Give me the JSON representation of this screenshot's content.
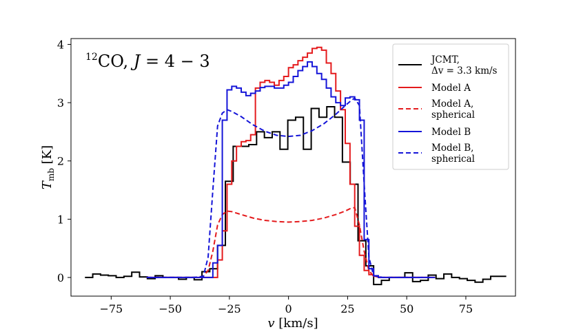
{
  "chart_data": {
    "type": "line",
    "title": "12CO, J = 4 − 3",
    "title_parts": {
      "sup": "12",
      "molecule": "CO, ",
      "j": "J",
      "rest": " = 4 − 3"
    },
    "xlabel": "v [km/s]",
    "xlabel_parts": {
      "var": "v",
      "unit": " [km/s]"
    },
    "ylabel": "T_mb [K]",
    "ylabel_parts": {
      "var": "T",
      "sub": "mb",
      "unit": " [K]"
    },
    "xlim": [
      -92,
      96
    ],
    "ylim": [
      -0.32,
      4.1
    ],
    "xticks": [
      -75,
      -50,
      -25,
      0,
      25,
      50,
      75
    ],
    "xtick_labels": [
      "−75",
      "−50",
      "−25",
      "0",
      "25",
      "50",
      "75"
    ],
    "yticks": [
      0,
      1,
      2,
      3,
      4
    ],
    "ytick_labels": [
      "0",
      "1",
      "2",
      "3",
      "4"
    ],
    "legend_position": "top-right",
    "series": [
      {
        "name": "JCMT, Δv = 3.3 km/s",
        "legend_lines": [
          "JCMT,",
          "Δv = 3.3 km/s"
        ],
        "color": "#000000",
        "style": "solid",
        "step": true,
        "x": [
          -86.1,
          -82.8,
          -79.5,
          -76.2,
          -72.9,
          -69.6,
          -66.3,
          -63.0,
          -59.7,
          -56.4,
          -53.1,
          -49.8,
          -46.5,
          -43.2,
          -39.9,
          -36.6,
          -33.3,
          -30.0,
          -26.7,
          -23.4,
          -20.1,
          -16.8,
          -13.5,
          -10.2,
          -6.9,
          -3.6,
          -0.3,
          3.0,
          6.3,
          9.6,
          12.9,
          16.2,
          19.5,
          22.8,
          26.1,
          29.4,
          32.7,
          36.0,
          39.3,
          42.6,
          45.9,
          49.2,
          52.5,
          55.8,
          59.1,
          62.4,
          65.7,
          69.0,
          72.3,
          75.6,
          78.9,
          82.2,
          85.5,
          88.8
        ],
        "values": [
          0.0,
          0.06,
          0.04,
          0.03,
          0.0,
          0.02,
          0.09,
          0.01,
          -0.02,
          0.03,
          0.0,
          0.0,
          -0.03,
          0.0,
          -0.04,
          0.1,
          0.15,
          0.55,
          1.65,
          2.25,
          2.25,
          2.28,
          2.5,
          2.4,
          2.5,
          2.2,
          2.7,
          2.75,
          2.2,
          2.9,
          2.75,
          2.93,
          2.75,
          1.98,
          1.6,
          0.63,
          0.2,
          -0.12,
          -0.05,
          0.0,
          0.0,
          0.08,
          -0.07,
          -0.05,
          0.04,
          -0.02,
          0.06,
          0.0,
          -0.02,
          -0.05,
          -0.08,
          -0.03,
          0.02,
          0.02
        ]
      },
      {
        "name": "Model A",
        "legend_lines": [
          "Model A"
        ],
        "color": "#e41a1c",
        "style": "solid",
        "step": true,
        "x": [
          -60,
          -58,
          -56,
          -54,
          -52,
          -50,
          -48,
          -46,
          -44,
          -42,
          -40,
          -38,
          -36,
          -34,
          -32,
          -30,
          -28,
          -26,
          -24,
          -22,
          -20,
          -18,
          -16,
          -14,
          -12,
          -10,
          -8,
          -6,
          -4,
          -2,
          0,
          2,
          4,
          6,
          8,
          10,
          12,
          14,
          16,
          18,
          20,
          22,
          24,
          26,
          28,
          30,
          32,
          34,
          36,
          38,
          40,
          42,
          44,
          46,
          48,
          50,
          52,
          54,
          56,
          58,
          60
        ],
        "values": [
          0,
          0,
          0,
          0,
          0,
          0,
          0,
          0,
          0,
          0,
          0,
          0,
          0,
          0,
          0,
          0.3,
          0.8,
          1.6,
          2.0,
          2.25,
          2.33,
          2.35,
          2.45,
          3.25,
          3.35,
          3.38,
          3.35,
          3.3,
          3.38,
          3.45,
          3.6,
          3.65,
          3.72,
          3.78,
          3.85,
          3.93,
          3.95,
          3.9,
          3.68,
          3.5,
          3.2,
          2.88,
          2.3,
          1.6,
          0.88,
          0.38,
          0.12,
          0.05,
          0.02,
          0,
          0,
          0,
          0,
          0,
          0,
          0,
          0,
          0,
          0,
          0,
          0
        ]
      },
      {
        "name": "Model A, spherical",
        "legend_lines": [
          "Model A,",
          "spherical"
        ],
        "color": "#e41a1c",
        "style": "dashed",
        "step": false,
        "x": [
          -60,
          -50,
          -40,
          -36,
          -34,
          -32,
          -30,
          -28,
          -26,
          -24,
          -20,
          -15,
          -10,
          -5,
          0,
          5,
          10,
          15,
          20,
          24,
          26,
          28,
          30,
          32,
          34,
          36,
          40,
          50,
          60
        ],
        "values": [
          0,
          0,
          0,
          0.02,
          0.12,
          0.45,
          0.9,
          1.08,
          1.14,
          1.13,
          1.08,
          1.02,
          0.98,
          0.96,
          0.95,
          0.96,
          0.98,
          1.02,
          1.08,
          1.14,
          1.18,
          1.2,
          0.9,
          0.45,
          0.12,
          0.02,
          0,
          0,
          0
        ]
      },
      {
        "name": "Model B",
        "legend_lines": [
          "Model B"
        ],
        "color": "#1414d8",
        "style": "solid",
        "step": true,
        "x": [
          -60,
          -58,
          -56,
          -54,
          -52,
          -50,
          -48,
          -46,
          -44,
          -42,
          -40,
          -38,
          -36,
          -34,
          -32,
          -30,
          -28,
          -26,
          -24,
          -22,
          -20,
          -18,
          -16,
          -14,
          -12,
          -10,
          -8,
          -6,
          -4,
          -2,
          0,
          2,
          4,
          6,
          8,
          10,
          12,
          14,
          16,
          18,
          20,
          22,
          24,
          26,
          28,
          30,
          32,
          34,
          36,
          38,
          40,
          42,
          44,
          46,
          48,
          50,
          52,
          54,
          56,
          58,
          60
        ],
        "values": [
          0,
          0,
          0,
          0,
          0,
          0,
          0,
          0,
          0,
          0,
          0,
          0,
          0,
          0,
          0.25,
          0.55,
          2.7,
          3.22,
          3.28,
          3.25,
          3.18,
          3.12,
          3.16,
          3.2,
          3.26,
          3.28,
          3.28,
          3.25,
          3.25,
          3.3,
          3.35,
          3.45,
          3.55,
          3.62,
          3.7,
          3.62,
          3.5,
          3.4,
          3.25,
          3.1,
          3.0,
          2.95,
          3.08,
          3.1,
          3.05,
          2.7,
          0.65,
          0.15,
          0.03,
          0,
          0,
          0,
          0,
          0,
          0,
          0,
          0,
          0,
          0,
          0,
          0
        ]
      },
      {
        "name": "Model B, spherical",
        "legend_lines": [
          "Model B,",
          "spherical"
        ],
        "color": "#1414d8",
        "style": "dashed",
        "step": false,
        "x": [
          -60,
          -50,
          -40,
          -36,
          -34,
          -32,
          -30,
          -28,
          -26,
          -24,
          -20,
          -15,
          -10,
          -5,
          0,
          5,
          10,
          15,
          20,
          24,
          26,
          28,
          30,
          32,
          34,
          36,
          40,
          50,
          60
        ],
        "values": [
          0,
          0,
          0,
          0.02,
          0.35,
          1.5,
          2.6,
          2.82,
          2.88,
          2.85,
          2.76,
          2.62,
          2.51,
          2.44,
          2.42,
          2.44,
          2.52,
          2.64,
          2.8,
          2.95,
          3.02,
          3.08,
          2.95,
          1.6,
          0.35,
          0.03,
          0,
          0,
          0
        ]
      }
    ]
  }
}
